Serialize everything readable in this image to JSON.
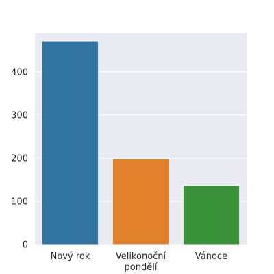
{
  "chart_data": {
    "type": "bar",
    "categories": [
      [
        "Nový rok"
      ],
      [
        "Velikonoční",
        "pondělí"
      ],
      [
        "Vánoce"
      ]
    ],
    "values": [
      471,
      199,
      137
    ],
    "ylim": [
      0,
      490
    ],
    "yticks": [
      0,
      100,
      200,
      300,
      400
    ],
    "colors": [
      "#3274a1",
      "#e1812c",
      "#3a923a"
    ],
    "background": "#eaeaf2",
    "grid": true,
    "title": "",
    "xlabel": "",
    "ylabel": ""
  }
}
